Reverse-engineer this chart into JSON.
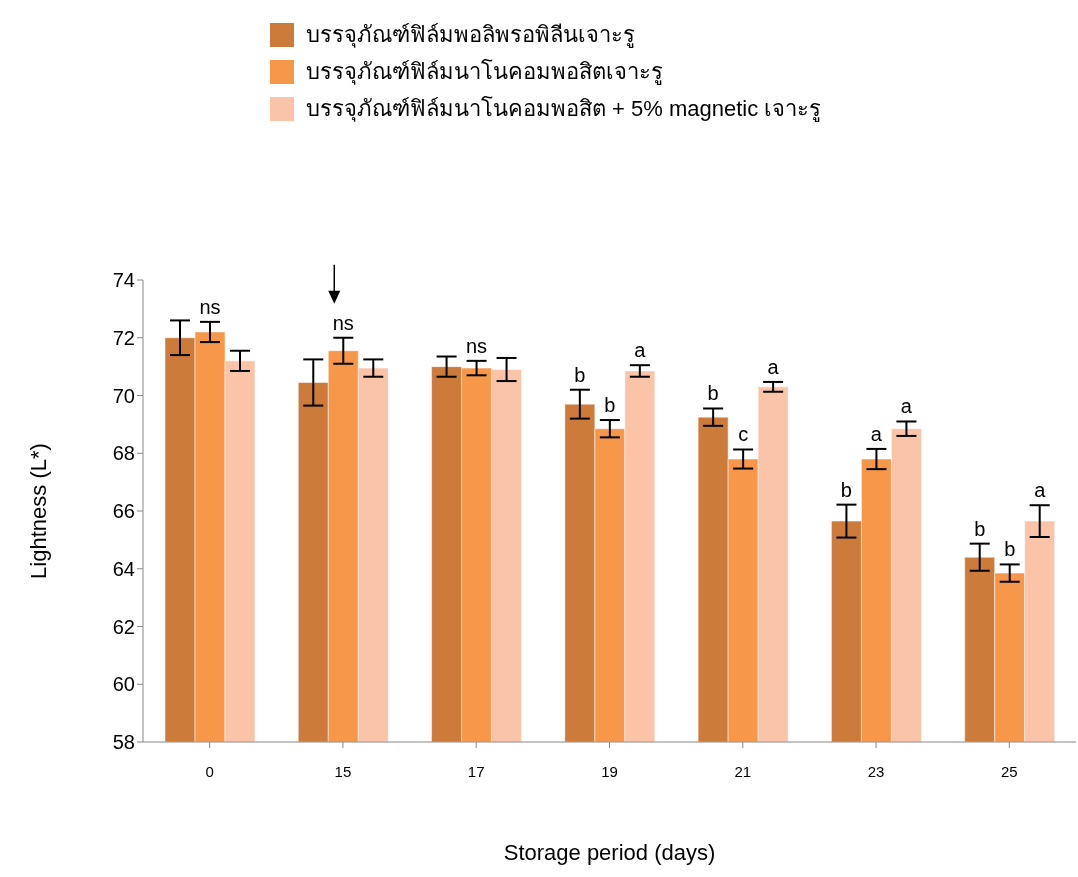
{
  "chart_data": {
    "type": "bar",
    "xlabel": "Storage period (days)",
    "ylabel": "Lightness  (L*)",
    "categories": [
      "0",
      "15",
      "17",
      "19",
      "21",
      "23",
      "25"
    ],
    "series": [
      {
        "name": "บรรจุภัณฑ์ฟิล์มพอลิพรอพิลีนเจาะรู",
        "color": "#cd7b3a",
        "values": [
          72.0,
          70.45,
          71.0,
          69.7,
          69.25,
          65.65,
          64.4
        ],
        "errors": [
          0.6,
          0.8,
          0.35,
          0.5,
          0.3,
          0.57,
          0.47
        ],
        "value_labels": [
          null,
          null,
          null,
          "b",
          "b",
          "b",
          "b"
        ]
      },
      {
        "name": "บรรจุภัณฑ์ฟิล์มนาโนคอมพอสิตเจาะรู",
        "color": "#f6974a",
        "values": [
          72.2,
          71.55,
          70.95,
          68.85,
          67.8,
          67.8,
          63.85
        ],
        "errors": [
          0.35,
          0.45,
          0.25,
          0.3,
          0.33,
          0.35,
          0.3
        ],
        "value_labels": [
          "ns",
          "ns",
          "ns",
          "b",
          "c",
          "a",
          "b"
        ]
      },
      {
        "name": "บรรจุภัณฑ์ฟิล์มนาโนคอมพอสิต + 5% magnetic เจาะรู",
        "color": "#f9c4a8",
        "values": [
          71.2,
          70.95,
          70.9,
          70.85,
          70.3,
          68.85,
          65.65
        ],
        "errors": [
          0.35,
          0.3,
          0.4,
          0.2,
          0.17,
          0.25,
          0.55
        ],
        "value_labels": [
          null,
          null,
          null,
          "a",
          "a",
          "a",
          "a"
        ]
      }
    ],
    "ylim": [
      58,
      74
    ],
    "yticks": [
      58,
      60,
      62,
      64,
      66,
      68,
      70,
      72,
      74
    ],
    "grid": false,
    "legend": "top"
  }
}
